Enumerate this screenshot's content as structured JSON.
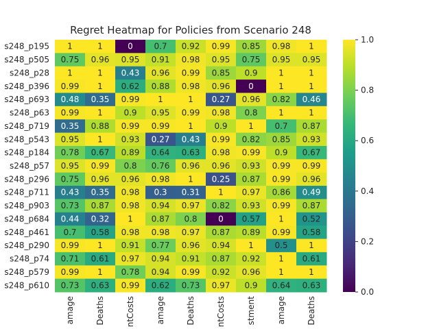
{
  "chart_data": {
    "type": "heatmap",
    "title": "Regret Heatmap for Policies from Scenario 248",
    "rows": [
      "s248_p195",
      "s248_p505",
      "s248_p28",
      "s248_p396",
      "s248_p693",
      "s248_p63",
      "s248_p719",
      "s248_p543",
      "s248_p184",
      "s248_p57",
      "s248_p296",
      "s248_p711",
      "s248_p903",
      "s248_p684",
      "s248_p461",
      "s248_p290",
      "s248_p74",
      "s248_p579",
      "s248_p610"
    ],
    "columns": [
      "amage",
      "Deaths",
      "ntCosts",
      "amage",
      "Deaths",
      "ntCosts",
      "stment",
      "amage",
      "Deaths"
    ],
    "values": [
      [
        1,
        1,
        0,
        0.7,
        0.92,
        0.99,
        0.85,
        0.98,
        1
      ],
      [
        0.75,
        0.96,
        0.95,
        0.91,
        0.98,
        0.95,
        0.75,
        0.95,
        0.95
      ],
      [
        1,
        1,
        0.43,
        0.96,
        0.99,
        0.85,
        0.9,
        1,
        1
      ],
      [
        0.99,
        1,
        0.62,
        0.88,
        0.98,
        0.96,
        0,
        1,
        1
      ],
      [
        0.48,
        0.35,
        0.99,
        1,
        1,
        0.27,
        0.96,
        0.82,
        0.46
      ],
      [
        0.99,
        1,
        0.9,
        0.95,
        0.99,
        0.98,
        0.8,
        1,
        1
      ],
      [
        0.35,
        0.88,
        0.99,
        0.99,
        1,
        0.9,
        1,
        0.7,
        0.87
      ],
      [
        0.95,
        1,
        0.93,
        0.27,
        0.43,
        0.99,
        0.82,
        0.85,
        0.93
      ],
      [
        0.78,
        0.67,
        0.89,
        0.64,
        0.63,
        0.98,
        0.99,
        0.9,
        0.67
      ],
      [
        0.95,
        0.99,
        0.8,
        0.76,
        0.96,
        0.96,
        0.93,
        0.99,
        0.99
      ],
      [
        0.75,
        0.96,
        0.96,
        0.98,
        1,
        0.25,
        0.87,
        0.99,
        0.96
      ],
      [
        0.43,
        0.35,
        0.98,
        0.3,
        0.31,
        1,
        0.97,
        0.86,
        0.49
      ],
      [
        0.73,
        0.87,
        0.98,
        0.94,
        0.97,
        0.82,
        0.93,
        0.99,
        0.87
      ],
      [
        0.44,
        0.32,
        1,
        0.87,
        0.8,
        0,
        0.57,
        1,
        0.52
      ],
      [
        0.7,
        0.58,
        0.98,
        0.98,
        0.97,
        0.87,
        0.89,
        0.99,
        0.58
      ],
      [
        0.99,
        1,
        0.91,
        0.77,
        0.96,
        0.94,
        1,
        0.5,
        1
      ],
      [
        0.71,
        0.61,
        0.97,
        0.94,
        0.91,
        0.87,
        0.92,
        1,
        0.61
      ],
      [
        0.99,
        1,
        0.78,
        0.94,
        0.99,
        0.92,
        0.96,
        1,
        1
      ],
      [
        0.73,
        0.63,
        0.99,
        0.62,
        0.73,
        0.97,
        0.9,
        0.64,
        0.63
      ]
    ],
    "colormap": "viridis",
    "vmin": 0,
    "vmax": 1,
    "colorbar_ticks": [
      "0.0",
      "0.2",
      "0.4",
      "0.6",
      "0.8",
      "1.0"
    ],
    "grid": false
  }
}
